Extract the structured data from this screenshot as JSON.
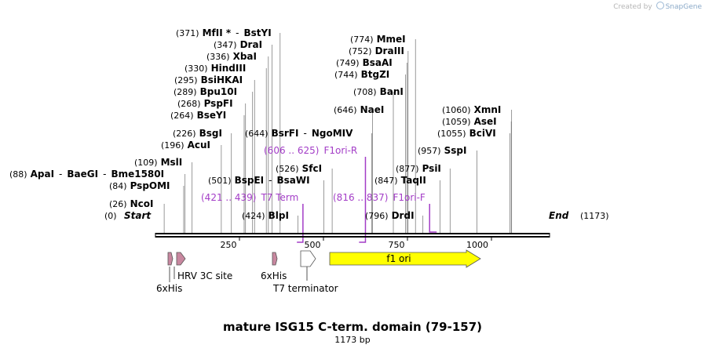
{
  "watermark": {
    "prefix": "Created by",
    "brand": "SnapGene"
  },
  "map": {
    "title": "mature ISG15 C-term. domain (79-157)",
    "length_label": "1173 bp",
    "length": 1173,
    "start_label": "Start",
    "start_pos": "(0)",
    "end_label": "End",
    "end_pos": "(1173)",
    "ticks": [
      "250",
      "500",
      "750",
      "1000"
    ]
  },
  "sites": [
    {
      "pos": "(26)",
      "name": "NcoI",
      "bp": 26
    },
    {
      "pos": "(84)",
      "name": "PspOMI",
      "bp": 84
    },
    {
      "pos": "(88)",
      "name": "ApaI",
      "bp": 88,
      "extras": [
        "BaeGI",
        "Bme1580I"
      ]
    },
    {
      "pos": "(109)",
      "name": "MslI",
      "bp": 109
    },
    {
      "pos": "(196)",
      "name": "AcuI",
      "bp": 196
    },
    {
      "pos": "(226)",
      "name": "BsgI",
      "bp": 226
    },
    {
      "pos": "(264)",
      "name": "BseYI",
      "bp": 264
    },
    {
      "pos": "(268)",
      "name": "PspFI",
      "bp": 268
    },
    {
      "pos": "(289)",
      "name": "Bpu10I",
      "bp": 289
    },
    {
      "pos": "(295)",
      "name": "BsiHKAI",
      "bp": 295
    },
    {
      "pos": "(330)",
      "name": "HindIII",
      "bp": 330
    },
    {
      "pos": "(336)",
      "name": "XbaI",
      "bp": 336
    },
    {
      "pos": "(347)",
      "name": "DraI",
      "bp": 347
    },
    {
      "pos": "(371)",
      "name": "MfII *",
      "bp": 371,
      "extras": [
        "BstYI"
      ]
    },
    {
      "pos": "(424)",
      "name": "BlpI",
      "bp": 424
    },
    {
      "pos": "(501)",
      "name": "BspEI",
      "bp": 501,
      "extras": [
        "BsaWI"
      ]
    },
    {
      "pos": "(526)",
      "name": "SfcI",
      "bp": 526
    },
    {
      "pos": "(644)",
      "name": "BsrFI",
      "bp": 644,
      "extras": [
        "NgoMIV"
      ]
    },
    {
      "pos": "(646)",
      "name": "NaeI",
      "bp": 646
    },
    {
      "pos": "(708)",
      "name": "BanI",
      "bp": 708
    },
    {
      "pos": "(744)",
      "name": "BtgZI",
      "bp": 744
    },
    {
      "pos": "(749)",
      "name": "BsaAI",
      "bp": 749
    },
    {
      "pos": "(752)",
      "name": "DraIII",
      "bp": 752
    },
    {
      "pos": "(774)",
      "name": "MmeI",
      "bp": 774
    },
    {
      "pos": "(796)",
      "name": "DrdI",
      "bp": 796
    },
    {
      "pos": "(847)",
      "name": "TaqII",
      "bp": 847
    },
    {
      "pos": "(877)",
      "name": "PsiI",
      "bp": 877
    },
    {
      "pos": "(957)",
      "name": "SspI",
      "bp": 957
    },
    {
      "pos": "(1055)",
      "name": "BciVI",
      "bp": 1055
    },
    {
      "pos": "(1059)",
      "name": "AseI",
      "bp": 1059
    },
    {
      "pos": "(1060)",
      "name": "XmnI",
      "bp": 1060
    }
  ],
  "primers": [
    {
      "range": "(421 .. 439)",
      "name": "T7 Term",
      "start": 421,
      "end": 439,
      "strand": "reverse"
    },
    {
      "range": "(606 .. 625)",
      "name": "F1ori-R",
      "start": 606,
      "end": 625,
      "strand": "reverse"
    },
    {
      "range": "(816 .. 837)",
      "name": "F1ori-F",
      "start": 816,
      "end": 837,
      "strand": "forward"
    }
  ],
  "features": [
    {
      "name": "6xHis",
      "start": 36,
      "end": 53,
      "type": "tag"
    },
    {
      "name": "HRV 3C site",
      "start": 58,
      "end": 82,
      "type": "site"
    },
    {
      "name": "6xHis",
      "start": 371,
      "end": 388,
      "type": "tag"
    },
    {
      "name": "T7 terminator",
      "start": 440,
      "end": 487,
      "type": "terminator"
    },
    {
      "name": "f1 ori",
      "start": 525,
      "end": 981,
      "type": "origin",
      "color": "#ffff00"
    }
  ],
  "colors": {
    "primer": "#a33dc7",
    "tag": "#c8879f",
    "origin": "#ffff00",
    "line": "#000000",
    "site_line": "#808080"
  }
}
